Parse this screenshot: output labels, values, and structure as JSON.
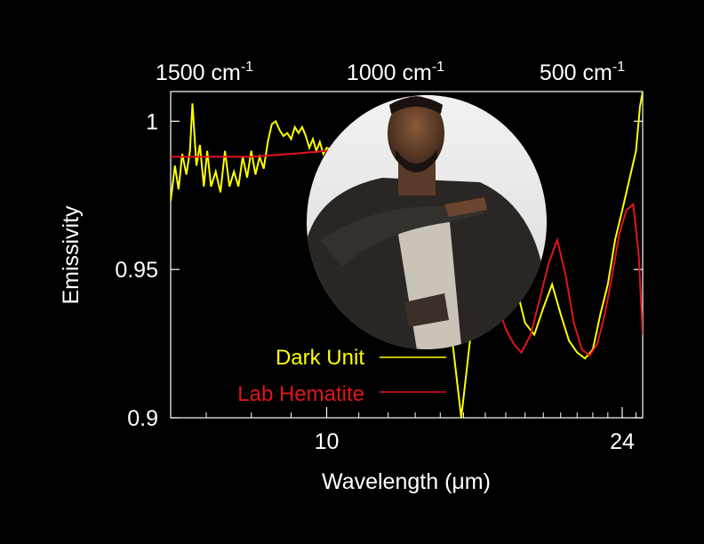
{
  "chart_data": {
    "type": "line",
    "xlabel": "Wavelength (μm)",
    "ylabel": "Emissivity",
    "xscale": "log",
    "xlim": [
      6.3,
      25.5
    ],
    "ylim": [
      0.9,
      1.01
    ],
    "yticks": [
      {
        "value": 0.9,
        "label": "0.9"
      },
      {
        "value": 0.95,
        "label": "0.95"
      },
      {
        "value": 1.0,
        "label": "1"
      }
    ],
    "xticks": [
      {
        "value": 10,
        "label": "10"
      },
      {
        "value": 24,
        "label": "24"
      }
    ],
    "xminor_ticks": [
      7,
      8,
      9,
      11,
      12,
      13,
      14,
      15,
      16,
      17,
      18,
      19,
      20,
      21,
      22,
      23,
      25
    ],
    "top_axis": [
      {
        "wavenumber": 1500,
        "unit": "cm",
        "exp": "-1"
      },
      {
        "wavenumber": 1000,
        "unit": "cm",
        "exp": "-1"
      },
      {
        "wavenumber": 500,
        "unit": "cm",
        "exp": "-1"
      }
    ],
    "legend_position": "bottom-center",
    "series": [
      {
        "name": "Dark Unit",
        "color": "#ffff00",
        "x": [
          6.3,
          6.38,
          6.45,
          6.52,
          6.6,
          6.67,
          6.72,
          6.8,
          6.87,
          6.95,
          7.02,
          7.1,
          7.2,
          7.3,
          7.4,
          7.5,
          7.6,
          7.7,
          7.8,
          7.9,
          8.0,
          8.1,
          8.2,
          8.3,
          8.4,
          8.5,
          8.6,
          8.7,
          8.8,
          8.9,
          9.0,
          9.1,
          9.2,
          9.3,
          9.4,
          9.5,
          9.6,
          9.7,
          9.8,
          9.9,
          10.0,
          10.3,
          10.6,
          11.0,
          11.5,
          12.0,
          12.5,
          13.0,
          13.5,
          14.0,
          14.3,
          14.6,
          14.9,
          15.2,
          15.5,
          15.8,
          16.1,
          16.4,
          16.7,
          17.0,
          17.5,
          18.0,
          18.5,
          19.0,
          19.5,
          20.0,
          20.5,
          21.0,
          21.5,
          22.0,
          22.5,
          23.0,
          23.5,
          24.0,
          24.5,
          25.0,
          25.3,
          25.5
        ],
        "y": [
          0.973,
          0.985,
          0.977,
          0.989,
          0.982,
          0.99,
          1.006,
          0.985,
          0.992,
          0.978,
          0.99,
          0.978,
          0.983,
          0.976,
          0.99,
          0.978,
          0.983,
          0.978,
          0.988,
          0.981,
          0.99,
          0.982,
          0.988,
          0.984,
          0.993,
          0.999,
          1.0,
          0.997,
          0.995,
          0.996,
          0.994,
          0.998,
          0.996,
          0.998,
          0.995,
          0.991,
          0.994,
          0.99,
          0.993,
          0.989,
          0.991,
          0.99,
          0.988,
          0.986,
          0.988,
          0.986,
          0.985,
          0.99,
          0.993,
          0.99,
          0.94,
          0.92,
          0.9,
          0.92,
          0.94,
          0.955,
          0.978,
          0.965,
          0.975,
          0.965,
          0.945,
          0.932,
          0.928,
          0.937,
          0.945,
          0.935,
          0.926,
          0.922,
          0.92,
          0.923,
          0.935,
          0.945,
          0.96,
          0.97,
          0.98,
          0.99,
          1.005,
          1.01
        ]
      },
      {
        "name": "Lab Hematite",
        "color": "#e0141e",
        "x": [
          6.3,
          7.0,
          8.0,
          9.0,
          10.0,
          11.0,
          12.0,
          12.8,
          13.5,
          14.1,
          14.6,
          15.0,
          15.4,
          15.8,
          16.2,
          16.6,
          17.0,
          17.4,
          17.8,
          18.3,
          18.8,
          19.3,
          19.8,
          20.3,
          20.8,
          21.3,
          21.8,
          22.3,
          22.8,
          23.3,
          23.8,
          24.3,
          24.8,
          25.2,
          25.5
        ],
        "y": [
          0.988,
          0.988,
          0.988,
          0.989,
          0.99,
          0.991,
          0.994,
          0.997,
          0.999,
          1.0,
          0.999,
          0.995,
          0.985,
          0.968,
          0.952,
          0.938,
          0.93,
          0.925,
          0.922,
          0.928,
          0.94,
          0.952,
          0.96,
          0.948,
          0.932,
          0.923,
          0.921,
          0.925,
          0.935,
          0.948,
          0.962,
          0.97,
          0.972,
          0.955,
          0.928
        ]
      }
    ]
  },
  "photo": {
    "description_icon": "person-photo-overlay"
  }
}
